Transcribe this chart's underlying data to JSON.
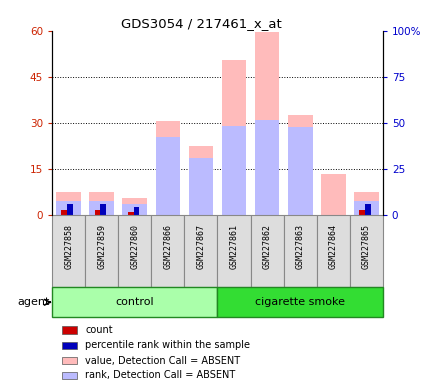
{
  "title": "GDS3054 / 217461_x_at",
  "samples": [
    "GSM227858",
    "GSM227859",
    "GSM227860",
    "GSM227866",
    "GSM227867",
    "GSM227861",
    "GSM227862",
    "GSM227863",
    "GSM227864",
    "GSM227865"
  ],
  "value_absent": [
    7.5,
    7.5,
    5.5,
    30.5,
    22.5,
    50.5,
    59.5,
    32.5,
    13.5,
    7.5
  ],
  "rank_absent": [
    4.5,
    4.5,
    3.5,
    25.5,
    18.5,
    29.0,
    31.0,
    28.5,
    0.0,
    4.5
  ],
  "count": [
    1.5,
    1.5,
    1.0,
    0.0,
    0.0,
    0.0,
    0.0,
    0.0,
    0.0,
    1.5
  ],
  "percentile": [
    3.5,
    3.5,
    2.5,
    0.0,
    0.0,
    0.0,
    0.0,
    0.0,
    0.0,
    3.5
  ],
  "left_ylim": [
    0,
    60
  ],
  "right_ylim": [
    0,
    100
  ],
  "left_yticks": [
    0,
    15,
    30,
    45,
    60
  ],
  "right_yticks": [
    0,
    25,
    50,
    75,
    100
  ],
  "right_yticklabels": [
    "0",
    "25",
    "50",
    "75",
    "100%"
  ],
  "left_color": "#cc2200",
  "right_color": "#0000cc",
  "color_value_absent": "#ffbbbb",
  "color_rank_absent": "#bbbbff",
  "color_count": "#cc0000",
  "color_percentile": "#0000bb",
  "bg_plot": "#ffffff",
  "bg_label_light": "#ccffcc",
  "bg_label_dark": "#44dd44",
  "agent_label": "agent",
  "legend_items": [
    {
      "color": "#cc0000",
      "label": "count"
    },
    {
      "color": "#0000bb",
      "label": "percentile rank within the sample"
    },
    {
      "color": "#ffbbbb",
      "label": "value, Detection Call = ABSENT"
    },
    {
      "color": "#bbbbff",
      "label": "rank, Detection Call = ABSENT"
    }
  ]
}
